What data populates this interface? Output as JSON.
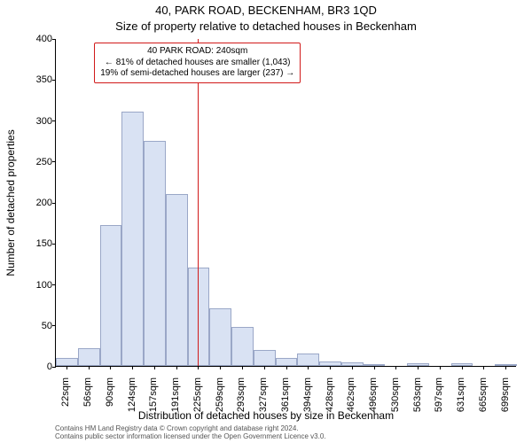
{
  "titles": {
    "line1": "40, PARK ROAD, BECKENHAM, BR3 1QD",
    "line2": "Size of property relative to detached houses in Beckenham"
  },
  "chart": {
    "type": "histogram",
    "background_color": "#ffffff",
    "axis_color": "#000000",
    "bar_fill": "#d9e2f3",
    "bar_stroke": "#9aa7c7",
    "ylabel": "Number of detached properties",
    "xlabel": "Distribution of detached houses by size in Beckenham",
    "label_fontsize": 12,
    "tick_fontsize": 11,
    "ylim": [
      0,
      400
    ],
    "ytick_step": 50,
    "yticks": [
      0,
      50,
      100,
      150,
      200,
      250,
      300,
      350,
      400
    ],
    "bar_count": 21,
    "x_labels": [
      "22sqm",
      "56sqm",
      "90sqm",
      "124sqm",
      "157sqm",
      "191sqm",
      "225sqm",
      "259sqm",
      "293sqm",
      "327sqm",
      "361sqm",
      "394sqm",
      "428sqm",
      "462sqm",
      "496sqm",
      "530sqm",
      "563sqm",
      "597sqm",
      "631sqm",
      "665sqm",
      "699sqm"
    ],
    "values": [
      10,
      22,
      172,
      310,
      275,
      210,
      120,
      70,
      48,
      20,
      10,
      15,
      5,
      4,
      2,
      0,
      3,
      0,
      3,
      0,
      2
    ],
    "marker": {
      "color": "#d11a1a",
      "bin_index": 6,
      "position_in_bin": 0.45
    },
    "annotation": {
      "border_color": "#d11a1a",
      "lines": [
        "40 PARK ROAD: 240sqm",
        "← 81% of detached houses are smaller (1,043)",
        "19% of semi-detached houses are larger (237) →"
      ],
      "fontsize": 10
    }
  },
  "attribution": {
    "line1": "Contains HM Land Registry data © Crown copyright and database right 2024.",
    "line2": "Contains public sector information licensed under the Open Government Licence v3.0."
  }
}
